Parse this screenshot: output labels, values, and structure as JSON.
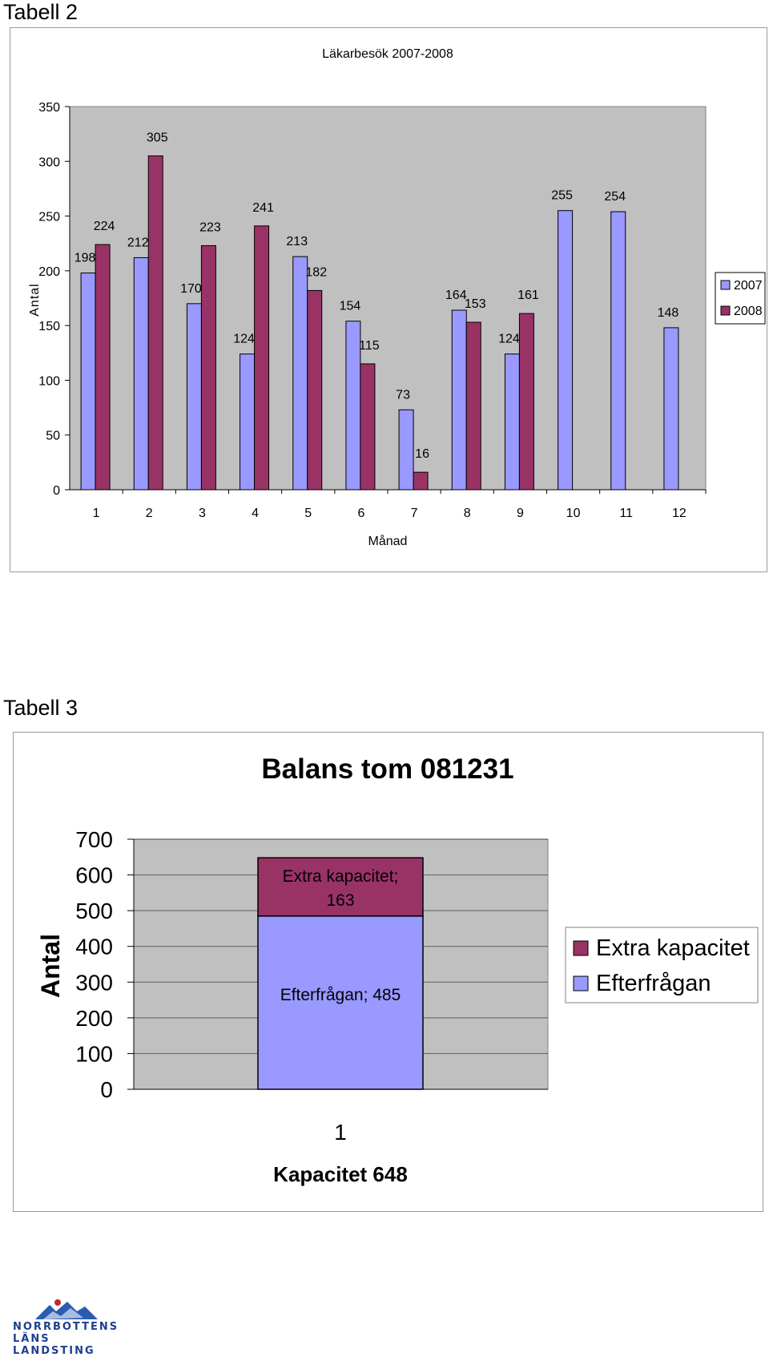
{
  "captions": {
    "table2": "Tabell 2",
    "table3": "Tabell 3"
  },
  "chart_data": [
    {
      "type": "bar",
      "title": "Läkarbesök 2007-2008",
      "xlabel": "Månad",
      "ylabel": "Antal",
      "ylim": [
        0,
        350
      ],
      "yticks": [
        0,
        50,
        100,
        150,
        200,
        250,
        300,
        350
      ],
      "categories": [
        "1",
        "2",
        "3",
        "4",
        "5",
        "6",
        "7",
        "8",
        "9",
        "10",
        "11",
        "12"
      ],
      "series": [
        {
          "name": "2007",
          "color": "#9999ff",
          "values": [
            198,
            212,
            170,
            124,
            213,
            154,
            73,
            164,
            124,
            255,
            254,
            148
          ]
        },
        {
          "name": "2008",
          "color": "#993366",
          "values": [
            224,
            305,
            223,
            241,
            182,
            115,
            16,
            153,
            161,
            null,
            null,
            null
          ]
        }
      ],
      "grid": false,
      "plot_background": "#c0c0c0",
      "legend": "right"
    },
    {
      "type": "bar",
      "stacked": true,
      "title": "Balans tom 081231",
      "xlabel": "Kapacitet 648",
      "ylabel": "Antal",
      "ylim": [
        0,
        700
      ],
      "yticks": [
        0,
        100,
        200,
        300,
        400,
        500,
        600,
        700
      ],
      "categories": [
        "1"
      ],
      "series": [
        {
          "name": "Efterfrågan",
          "color": "#9999ff",
          "values": [
            485
          ],
          "label": "Efterfrågan; 485"
        },
        {
          "name": "Extra kapacitet",
          "color": "#993366",
          "values": [
            163
          ],
          "label": "Extra kapacitet; 163"
        }
      ],
      "legend_order": [
        "Extra kapacitet",
        "Efterfrågan"
      ],
      "grid": true,
      "plot_background": "#c0c0c0",
      "legend": "right"
    }
  ],
  "logo": {
    "line1": "NORRBOTTENS",
    "line2": "LÄNS LANDSTING"
  }
}
